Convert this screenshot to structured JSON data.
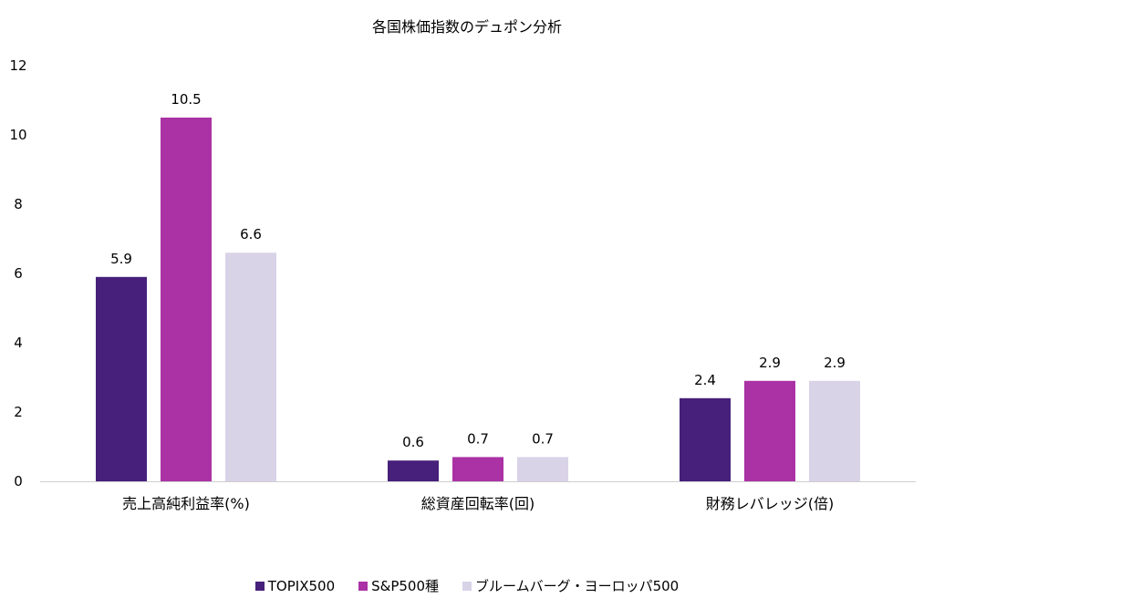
{
  "chart_data": {
    "type": "bar",
    "title": "各国株価指数のデュポン分析",
    "categories": [
      "売上高純利益率(%)",
      "総資産回転率(回)",
      "財務レバレッジ(倍)"
    ],
    "series": [
      {
        "name": "TOPIX500",
        "color": "#46207a",
        "values": [
          5.9,
          0.6,
          2.4
        ]
      },
      {
        "name": "S&P500種",
        "color": "#aa32a5",
        "values": [
          10.5,
          0.7,
          2.9
        ]
      },
      {
        "name": "ブルームバーグ・ヨーロッパ500",
        "color": "#d9d3e8",
        "values": [
          6.6,
          0.7,
          2.9
        ]
      }
    ],
    "y_ticks": [
      "0",
      "2",
      "4",
      "6",
      "8",
      "10",
      "12"
    ],
    "ylim": [
      0,
      12
    ],
    "grid": false,
    "legend_position": "bottom"
  }
}
